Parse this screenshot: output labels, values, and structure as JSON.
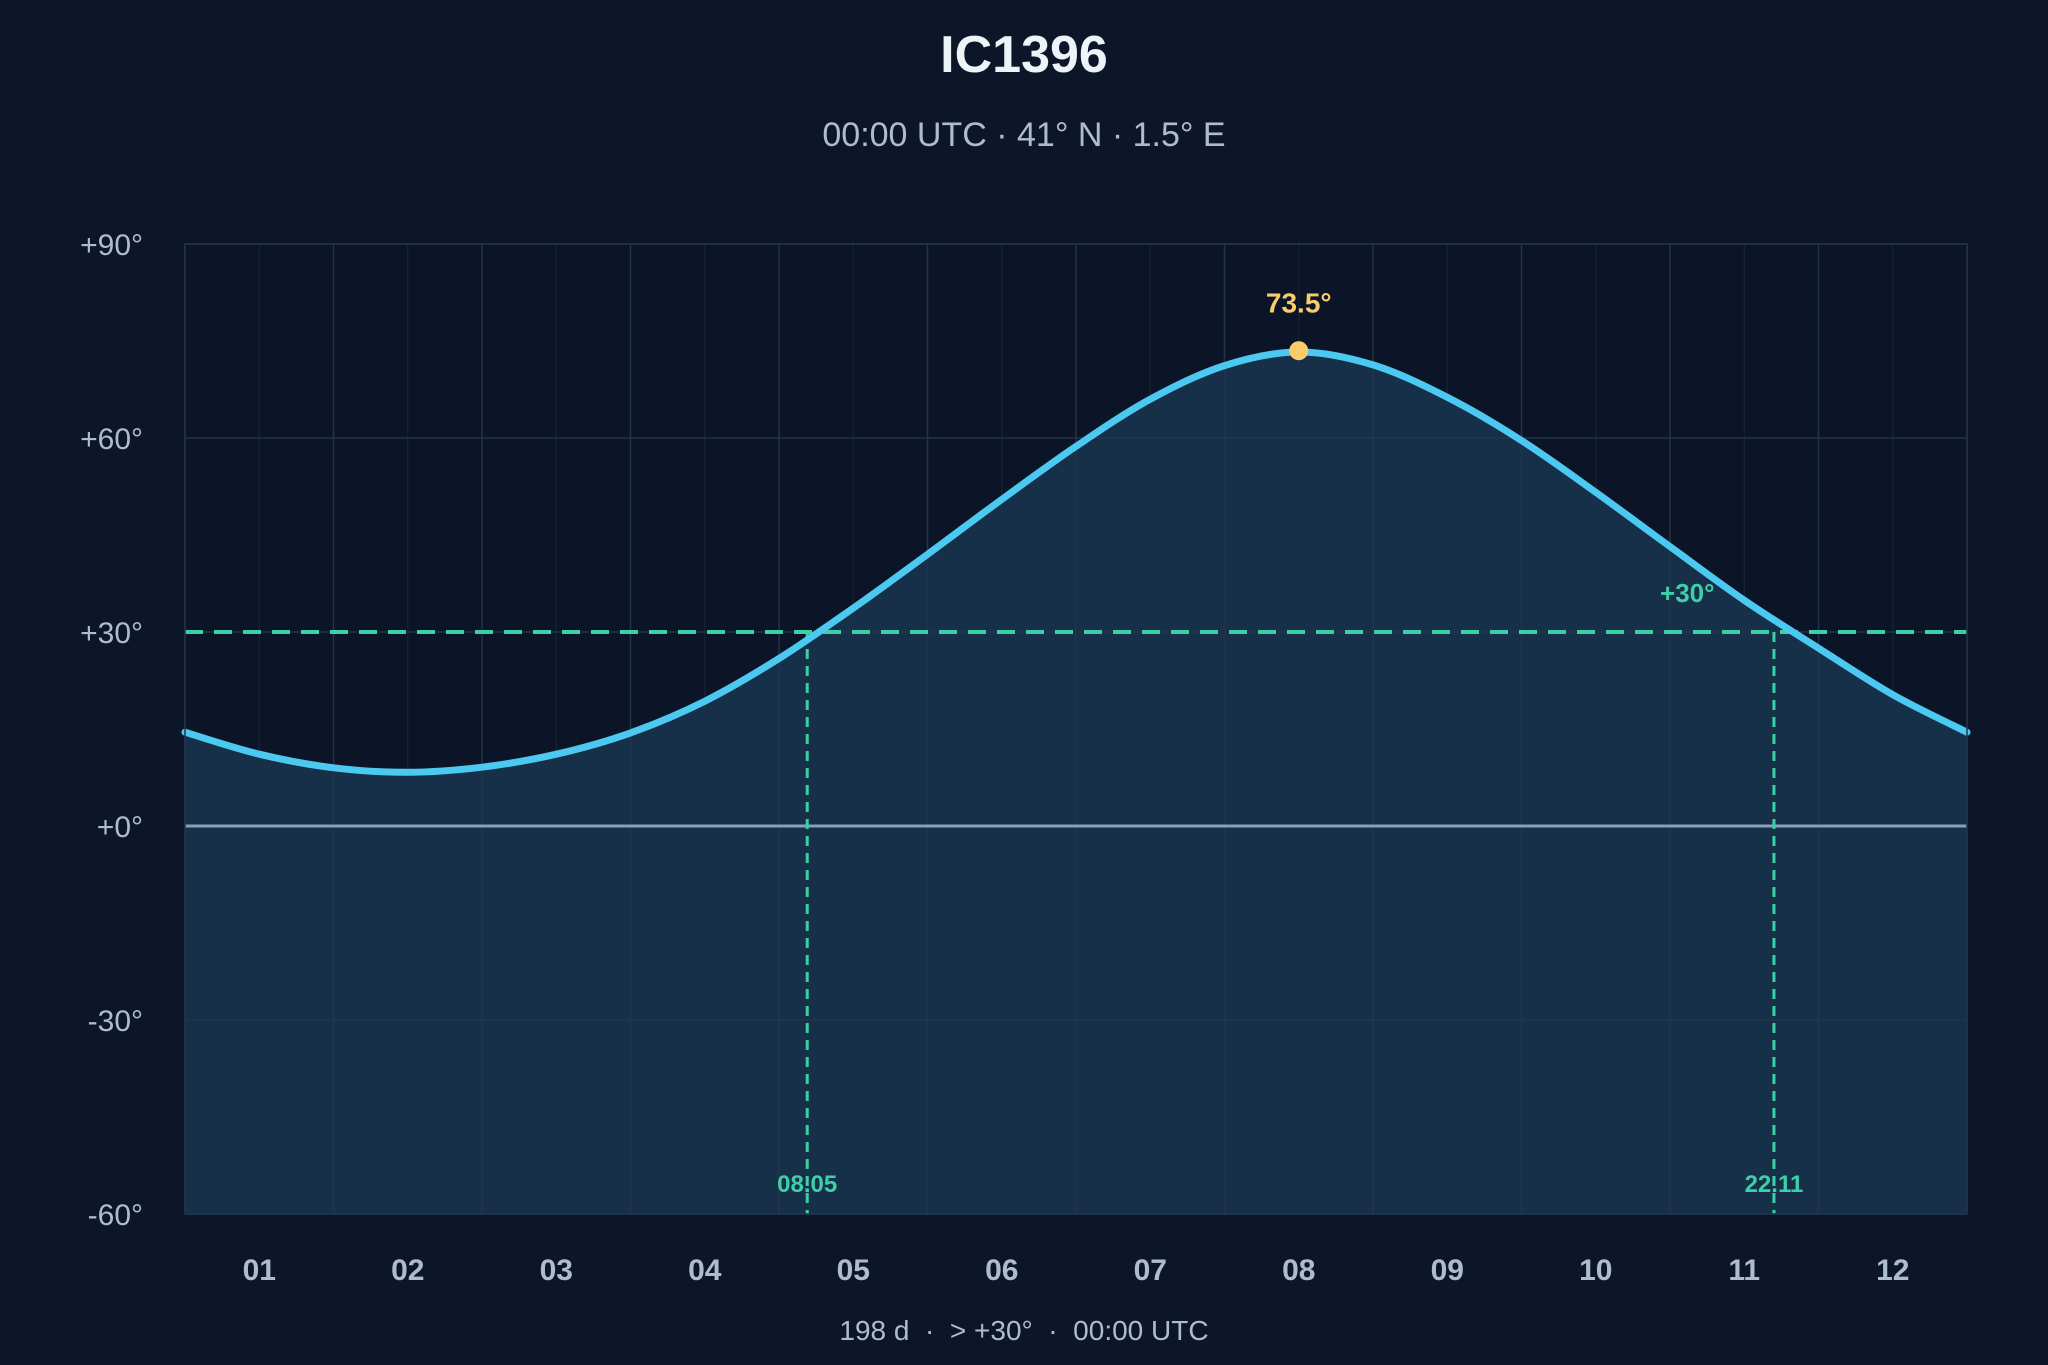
{
  "chart_data": {
    "type": "line",
    "title": "IC1396",
    "subtitle": "00:00 UTC · 41° N · 1.5° E",
    "footer": "198 d  ·  > +30°  ·  00:00 UTC",
    "xlabel": "",
    "ylabel": "",
    "x_ticks": [
      "01",
      "02",
      "03",
      "04",
      "05",
      "06",
      "07",
      "08",
      "09",
      "10",
      "11",
      "12"
    ],
    "y_ticks": [
      "+90°",
      "+60°",
      "+30°",
      "+0°",
      "-30°",
      "-60°"
    ],
    "ylim": [
      -60,
      90
    ],
    "xlim_months": [
      0.5,
      12.5
    ],
    "grid": true,
    "series": [
      {
        "values_x_month": [
          0.5,
          1.0,
          1.5,
          2.0,
          2.5,
          3.0,
          3.5,
          4.0,
          4.5,
          5.0,
          5.5,
          6.0,
          6.5,
          7.0,
          7.5,
          8.0,
          8.5,
          9.0,
          9.5,
          10.0,
          10.5,
          11.0,
          11.5,
          12.0,
          12.5
        ],
        "values_y_deg": [
          14.5,
          11.1,
          9.0,
          8.3,
          9.1,
          11.1,
          14.4,
          19.3,
          25.9,
          33.7,
          42.0,
          50.5,
          58.7,
          66.0,
          71.2,
          73.3,
          71.3,
          66.3,
          59.6,
          51.6,
          43.2,
          34.9,
          27.5,
          20.3,
          14.5
        ]
      }
    ],
    "threshold": {
      "value": 30,
      "label": "+30°"
    },
    "peak": {
      "x_month": 8.0,
      "value": 73.5,
      "label": "73.5°"
    },
    "crossings": [
      {
        "x_month": 4.69,
        "label": "08.05"
      },
      {
        "x_month": 11.2,
        "label": "22.11"
      }
    ],
    "colors": {
      "background": "#0c1628",
      "plot_background": "#0b1527",
      "area_fill": "#16304a",
      "curve": "#4cc9f0",
      "threshold": "#3ccfa8",
      "peak": "#f8cc6a",
      "horizon": "#8aa0b6",
      "grid": "#223449",
      "tick_text": "#aebdcc",
      "title": "#eef3f8",
      "subtitle": "#aebdcc"
    }
  }
}
